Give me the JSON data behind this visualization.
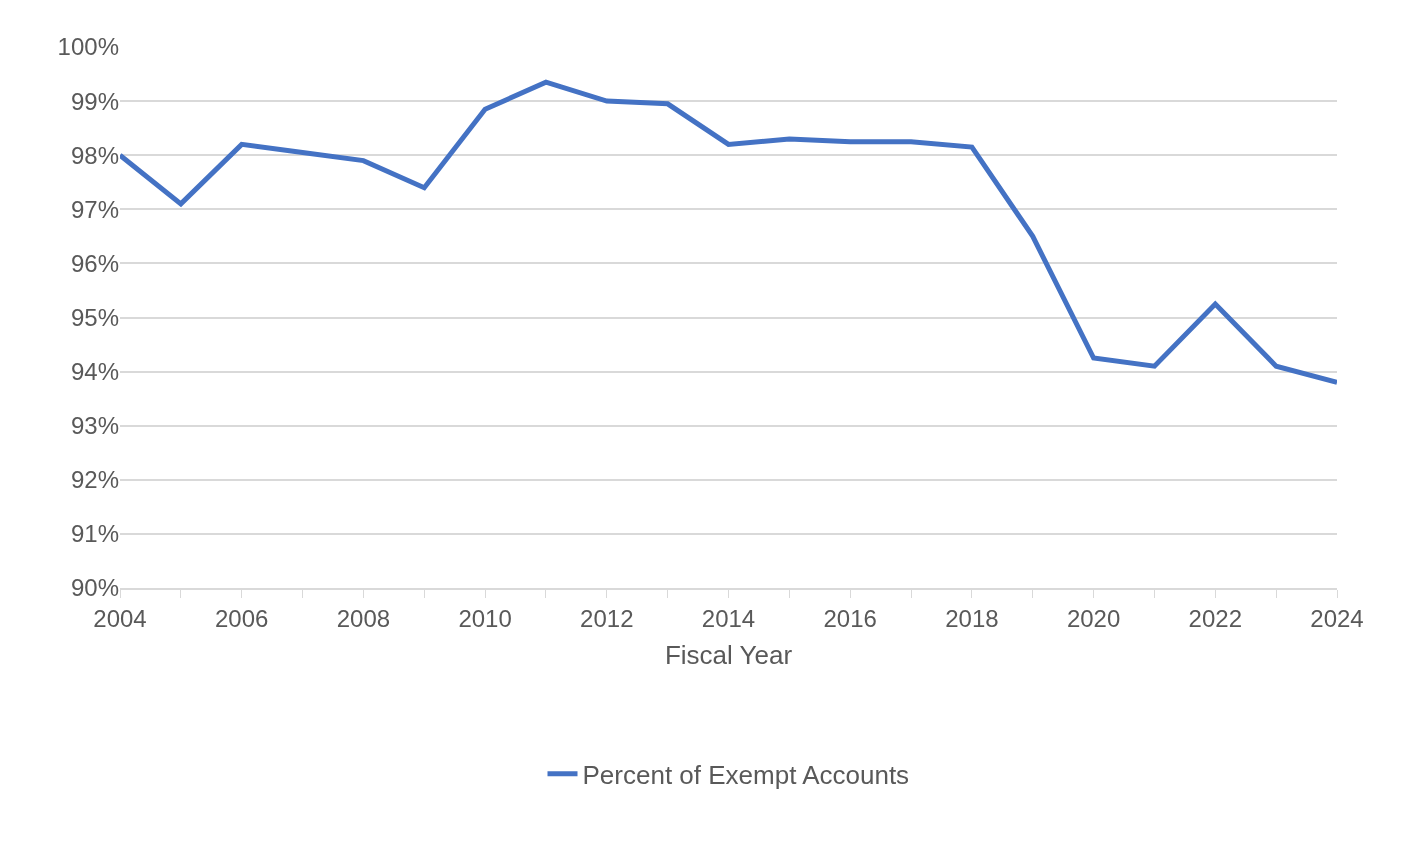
{
  "chart_data": {
    "type": "line",
    "xlabel": "Fiscal Year",
    "x": [
      2004,
      2005,
      2006,
      2007,
      2008,
      2009,
      2010,
      2011,
      2012,
      2013,
      2014,
      2015,
      2016,
      2017,
      2018,
      2019,
      2020,
      2021,
      2022,
      2023,
      2024
    ],
    "series": [
      {
        "name": "Percent of Exempt Accounts",
        "color": "#4472c4",
        "values": [
          98.0,
          97.1,
          98.2,
          98.05,
          97.9,
          97.4,
          98.85,
          99.35,
          99.0,
          98.95,
          98.2,
          98.3,
          98.25,
          98.25,
          98.15,
          96.5,
          94.25,
          94.1,
          95.25,
          94.1,
          93.8
        ]
      }
    ],
    "xlim": [
      2004,
      2024
    ],
    "xticks": [
      2004,
      {
        "value": 2005,
        "label": null
      },
      2006,
      {
        "value": 2007,
        "label": null
      },
      2008,
      {
        "value": 2009,
        "label": null
      },
      2010,
      {
        "value": 2011,
        "label": null
      },
      2012,
      {
        "value": 2013,
        "label": null
      },
      2014,
      {
        "value": 2015,
        "label": null
      },
      2016,
      {
        "value": 2017,
        "label": null
      },
      2018,
      {
        "value": 2019,
        "label": null
      },
      2020,
      {
        "value": 2021,
        "label": null
      },
      2022,
      {
        "value": 2023,
        "label": null
      },
      2024
    ],
    "ylim": [
      90,
      100
    ],
    "yticks": [
      {
        "value": 90,
        "label": "90%"
      },
      {
        "value": 91,
        "label": "91%"
      },
      {
        "value": 92,
        "label": "92%"
      },
      {
        "value": 93,
        "label": "93%"
      },
      {
        "value": 94,
        "label": "94%"
      },
      {
        "value": 95,
        "label": "95%"
      },
      {
        "value": 96,
        "label": "96%"
      },
      {
        "value": 97,
        "label": "97%"
      },
      {
        "value": 98,
        "label": "98%"
      },
      {
        "value": 99,
        "label": "99%"
      },
      {
        "value": 100,
        "label": "100%"
      }
    ],
    "grid": "y",
    "legend": "bottom",
    "marker": "none",
    "line_style": "solid"
  }
}
